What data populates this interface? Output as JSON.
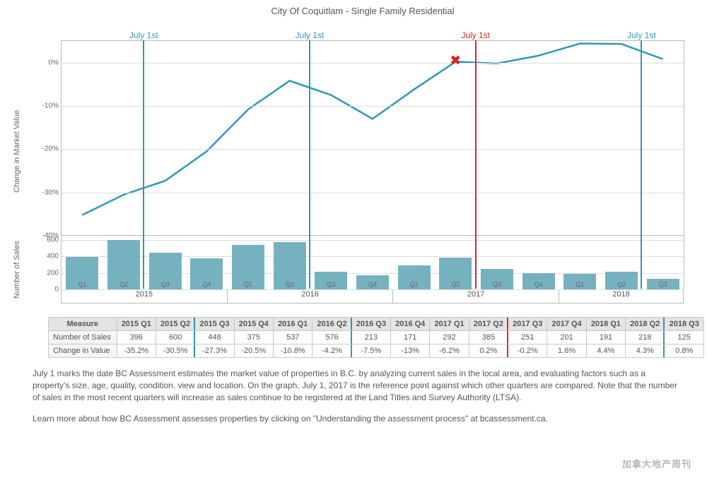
{
  "title": "City Of Coquitlam - Single Family Residential",
  "axis_labels": {
    "line_y": "Change in Market Value",
    "bar_y": "Number of Sales"
  },
  "colors": {
    "line": "#2f97b7",
    "line_width": 2.5,
    "bar": "#76b1bf",
    "grid": "#dddddd",
    "border": "#bbbbbb",
    "vline_teal": "#2f97b7",
    "vline_red": "#d62728",
    "x_marker": "#d62728",
    "text": "#555555",
    "bg": "#ffffff"
  },
  "line_chart": {
    "ylim": [
      -40,
      5
    ],
    "yticks": [
      -40,
      -30,
      -20,
      -10,
      0
    ],
    "values": [
      -35.2,
      -30.5,
      -27.3,
      -20.5,
      -10.8,
      -4.2,
      -7.5,
      -13,
      -6.2,
      0.2,
      -0.2,
      1.6,
      4.4,
      4.3,
      0.8
    ],
    "highlight_index": 9
  },
  "bar_chart": {
    "ylim": [
      0,
      650
    ],
    "yticks": [
      0,
      200,
      400,
      600
    ],
    "values": [
      396,
      600,
      448,
      375,
      537,
      576,
      213,
      171,
      292,
      385,
      251,
      201,
      191,
      218,
      125
    ],
    "labels": [
      "Q1",
      "Q2",
      "Q3",
      "Q4",
      "Q1",
      "Q2",
      "Q3",
      "Q4",
      "Q1",
      "Q2",
      "Q3",
      "Q4",
      "Q1",
      "Q2",
      "Q3"
    ]
  },
  "years": [
    "2015",
    "2016",
    "2017",
    "2018"
  ],
  "year_spans": [
    4,
    4,
    4,
    3
  ],
  "vlines": [
    {
      "between": [
        1,
        2
      ],
      "color": "teal",
      "label": "July 1st"
    },
    {
      "between": [
        5,
        6
      ],
      "color": "teal",
      "label": "July 1st"
    },
    {
      "between": [
        9,
        10
      ],
      "color": "red",
      "label": "July 1st"
    },
    {
      "between": [
        13,
        14
      ],
      "color": "teal",
      "label": "July 1st"
    }
  ],
  "table": {
    "header": [
      "Measure",
      "2015 Q1",
      "2015 Q2",
      "2015 Q3",
      "2015 Q4",
      "2016 Q1",
      "2016 Q2",
      "2016 Q3",
      "2016 Q4",
      "2017 Q1",
      "2017 Q2",
      "2017 Q3",
      "2017 Q4",
      "2018 Q1",
      "2018 Q2",
      "2018 Q3"
    ],
    "rows": [
      {
        "label": "Number of Sales",
        "values": [
          "396",
          "600",
          "448",
          "375",
          "537",
          "576",
          "213",
          "171",
          "292",
          "385",
          "251",
          "201",
          "191",
          "218",
          "125"
        ]
      },
      {
        "label": "Change in Value",
        "values": [
          "-35.2%",
          "-30.5%",
          "-27.3%",
          "-20.5%",
          "-10.8%",
          "-4.2%",
          "-7.5%",
          "-13%",
          "-6.2%",
          "0.2%",
          "-0.2%",
          "1.6%",
          "4.4%",
          "4.3%",
          "0.8%"
        ]
      }
    ]
  },
  "explain_p1": "July 1 marks the date BC Assessment estimates the market value of properties in B.C. by analyzing current sales in the local area, and evaluating factors such as a property's size, age, quality, condition, view and location. On the graph, July 1, 2017 is the reference point against which other quarters are compared. Note that the number of sales in the most recent quarters will increase as sales continue to be registered at the Land Titles and Survey Authority (LTSA).",
  "explain_p2": "Learn more about how BC Assessment assesses properties by clicking on \"Understanding the assessment process\" at bcassessment.ca.",
  "watermark": "加拿大地产周刊"
}
